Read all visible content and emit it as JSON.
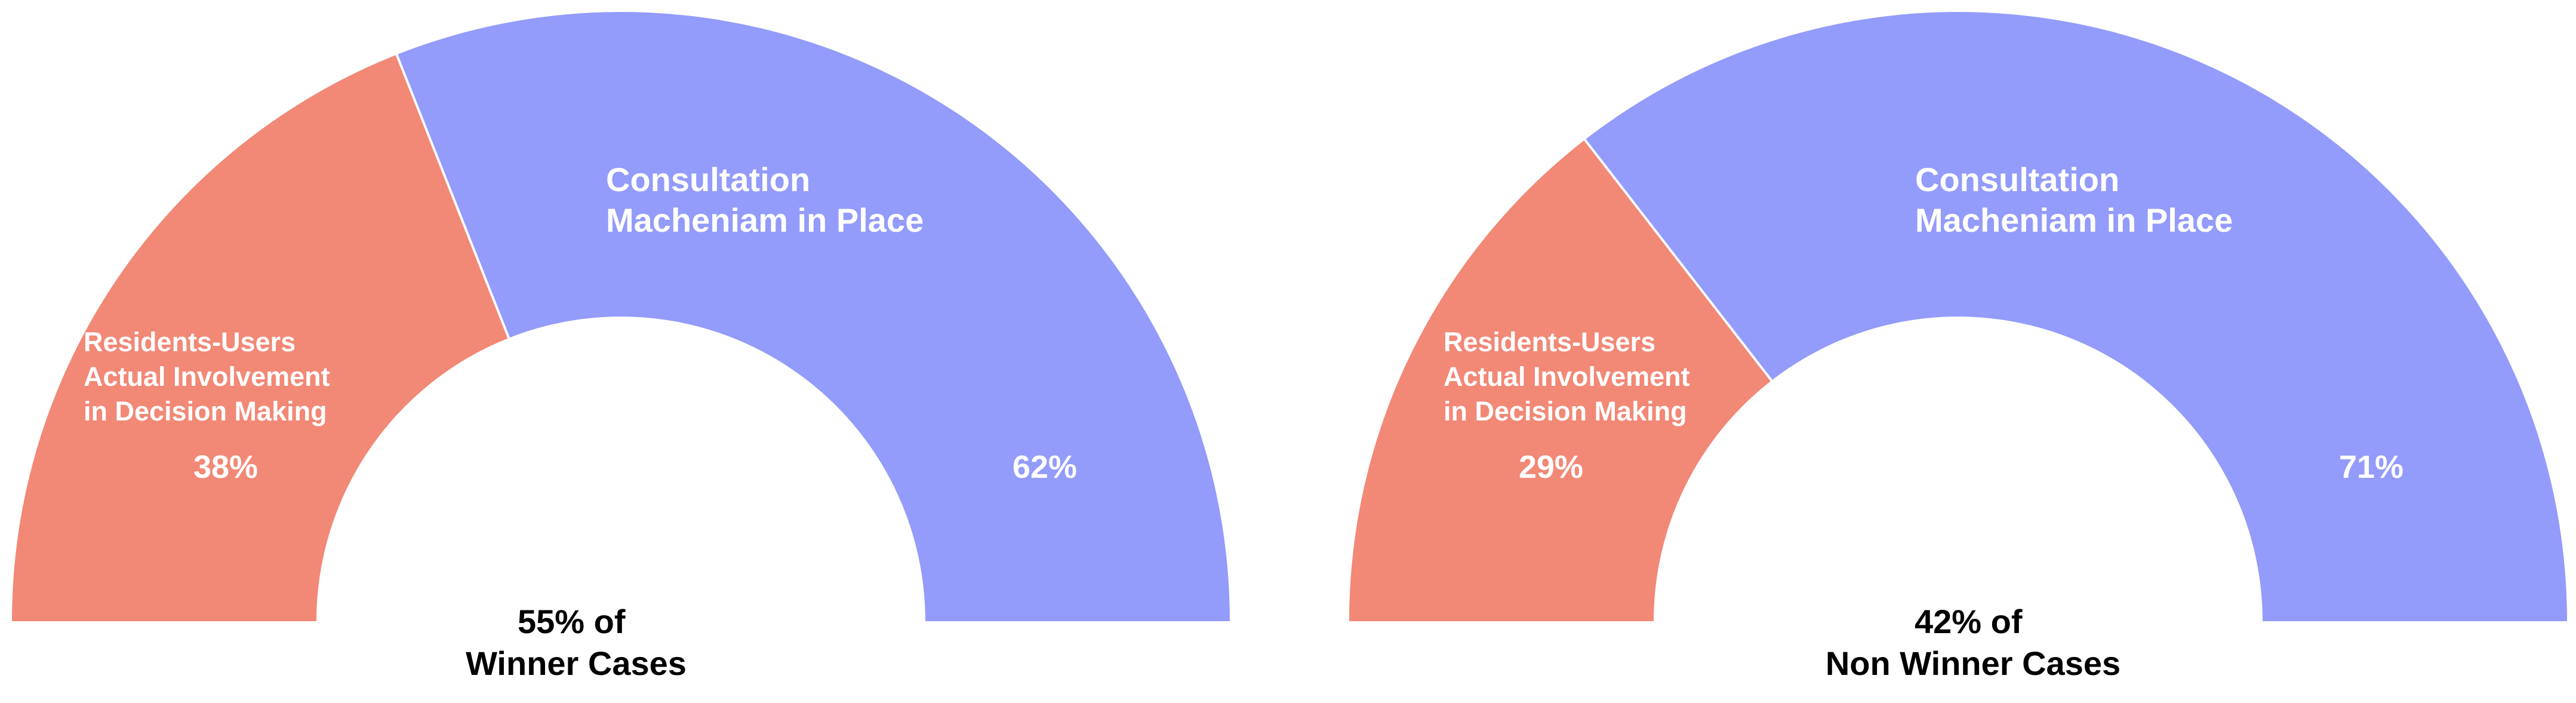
{
  "chart_data": [
    {
      "type": "pie",
      "style": "half-donut",
      "title": "",
      "caption_lines": [
        "55% of",
        "Winner Cases"
      ],
      "slices": [
        {
          "label_lines": [
            "Residents-Users",
            "Actual Involvement",
            "in Decision Making"
          ],
          "value": 38,
          "value_label": "38%",
          "color": "#f28876"
        },
        {
          "label_lines": [
            "Consultation",
            "Macheniam in Place"
          ],
          "value": 62,
          "value_label": "62%",
          "color": "#939bfb"
        }
      ]
    },
    {
      "type": "pie",
      "style": "half-donut",
      "title": "",
      "caption_lines": [
        "42% of",
        "Non Winner Cases"
      ],
      "slices": [
        {
          "label_lines": [
            "Residents-Users",
            "Actual Involvement",
            "in Decision Making"
          ],
          "value": 29,
          "value_label": "29%",
          "color": "#f28876"
        },
        {
          "label_lines": [
            "Consultation",
            "Macheniam in Place"
          ],
          "value": 71,
          "value_label": "71%",
          "color": "#939bfb"
        }
      ]
    }
  ]
}
